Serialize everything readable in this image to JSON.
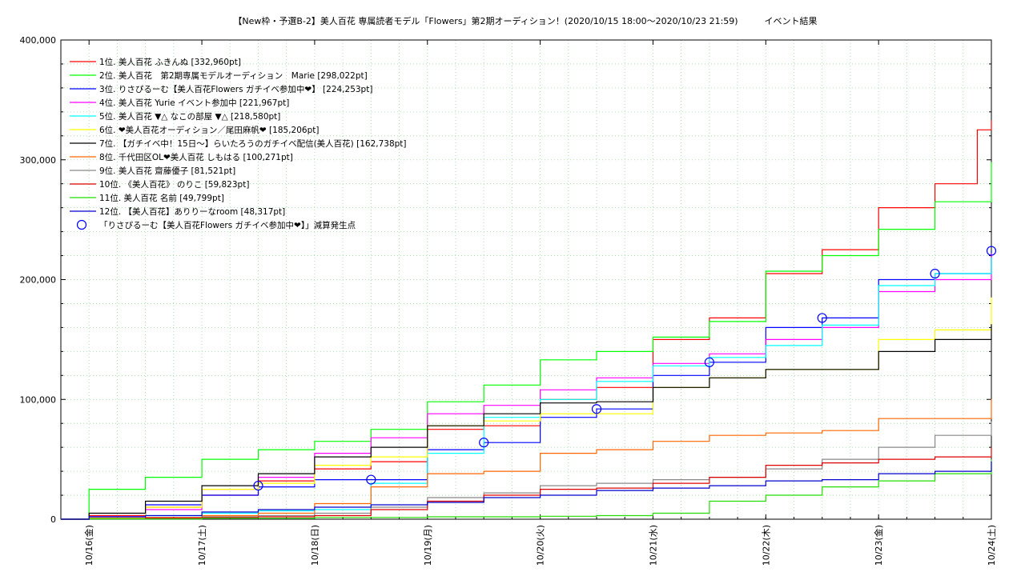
{
  "chart_data": {
    "type": "line",
    "title": "【New枠・予選B-2】美人百花 専属読者モデル「Flowers」第2期オーディション！(2020/10/15 18:00〜2020/10/23 21:59)　　　イベント結果",
    "xlabel": "",
    "ylabel": "",
    "x_range": [
      "2020-10-15 18:00",
      "2020-10-24 00:00"
    ],
    "ylim": [
      0,
      400000
    ],
    "y_ticks": [
      {
        "value": 0,
        "label": "0"
      },
      {
        "value": 100000,
        "label": "100,000"
      },
      {
        "value": 200000,
        "label": "200,000"
      },
      {
        "value": 300000,
        "label": "300,000"
      },
      {
        "value": 400000,
        "label": "400,000"
      }
    ],
    "x_ticks": [
      {
        "date": "2020-10-16",
        "label": "10/16(金)"
      },
      {
        "date": "2020-10-17",
        "label": "10/17(土)"
      },
      {
        "date": "2020-10-18",
        "label": "10/18(日)"
      },
      {
        "date": "2020-10-19",
        "label": "10/19(月)"
      },
      {
        "date": "2020-10-20",
        "label": "10/20(火)"
      },
      {
        "date": "2020-10-21",
        "label": "10/21(水)"
      },
      {
        "date": "2020-10-22",
        "label": "10/22(木)"
      },
      {
        "date": "2020-10-23",
        "label": "10/23(金)"
      },
      {
        "date": "2020-10-24",
        "label": "10/24(土)"
      }
    ],
    "grid": true,
    "legend_position": "top-left",
    "series": [
      {
        "name": "1位. 美人百花 ふきんぬ [332,960pt]",
        "color": "#ff0000",
        "points": [
          [
            "2020-10-15 18:00",
            0
          ],
          [
            "2020-10-16 00:00",
            3000
          ],
          [
            "2020-10-16 12:00",
            10000
          ],
          [
            "2020-10-17 00:00",
            20000
          ],
          [
            "2020-10-17 12:00",
            32000
          ],
          [
            "2020-10-18 00:00",
            42000
          ],
          [
            "2020-10-18 12:00",
            48000
          ],
          [
            "2020-10-19 00:00",
            75000
          ],
          [
            "2020-10-19 12:00",
            78000
          ],
          [
            "2020-10-20 00:00",
            100000
          ],
          [
            "2020-10-20 12:00",
            110000
          ],
          [
            "2020-10-21 00:00",
            150000
          ],
          [
            "2020-10-21 12:00",
            168000
          ],
          [
            "2020-10-22 00:00",
            205000
          ],
          [
            "2020-10-22 12:00",
            225000
          ],
          [
            "2020-10-23 00:00",
            260000
          ],
          [
            "2020-10-23 12:00",
            280000
          ],
          [
            "2020-10-23 21:00",
            325000
          ],
          [
            "2020-10-24 00:00",
            332960
          ]
        ]
      },
      {
        "name": "2位. 美人百花　第2期専属モデルオーディション　Marie [298,022pt]",
        "color": "#00ff00",
        "points": [
          [
            "2020-10-15 18:00",
            0
          ],
          [
            "2020-10-16 00:00",
            25000
          ],
          [
            "2020-10-16 12:00",
            35000
          ],
          [
            "2020-10-17 00:00",
            50000
          ],
          [
            "2020-10-17 12:00",
            58000
          ],
          [
            "2020-10-18 00:00",
            65000
          ],
          [
            "2020-10-18 12:00",
            75000
          ],
          [
            "2020-10-19 00:00",
            98000
          ],
          [
            "2020-10-19 12:00",
            112000
          ],
          [
            "2020-10-20 00:00",
            133000
          ],
          [
            "2020-10-20 12:00",
            140000
          ],
          [
            "2020-10-21 00:00",
            152000
          ],
          [
            "2020-10-21 12:00",
            165000
          ],
          [
            "2020-10-22 00:00",
            207000
          ],
          [
            "2020-10-22 12:00",
            220000
          ],
          [
            "2020-10-23 00:00",
            242000
          ],
          [
            "2020-10-23 12:00",
            265000
          ],
          [
            "2020-10-24 00:00",
            298022
          ]
        ]
      },
      {
        "name": "3位. りさぴるーむ【美人百花Flowers ガチイベ参加中❤】 [224,253pt]",
        "color": "#0000ff",
        "points": [
          [
            "2020-10-15 18:00",
            0
          ],
          [
            "2020-10-16 00:00",
            2000
          ],
          [
            "2020-10-16 12:00",
            12000
          ],
          [
            "2020-10-17 00:00",
            20000
          ],
          [
            "2020-10-17 12:00",
            27000
          ],
          [
            "2020-10-18 00:00",
            33000
          ],
          [
            "2020-10-18 12:00",
            33000
          ],
          [
            "2020-10-19 00:00",
            58000
          ],
          [
            "2020-10-19 12:00",
            64000
          ],
          [
            "2020-10-20 00:00",
            85000
          ],
          [
            "2020-10-20 12:00",
            92000
          ],
          [
            "2020-10-21 00:00",
            120000
          ],
          [
            "2020-10-21 12:00",
            131000
          ],
          [
            "2020-10-22 00:00",
            160000
          ],
          [
            "2020-10-22 12:00",
            168000
          ],
          [
            "2020-10-23 00:00",
            200000
          ],
          [
            "2020-10-23 12:00",
            205000
          ],
          [
            "2020-10-24 00:00",
            224253
          ]
        ]
      },
      {
        "name": "4位. 美人百花 Yurie イベント参加中 [221,967pt]",
        "color": "#ff00ff",
        "points": [
          [
            "2020-10-15 18:00",
            0
          ],
          [
            "2020-10-16 00:00",
            2000
          ],
          [
            "2020-10-16 12:00",
            8000
          ],
          [
            "2020-10-17 00:00",
            25000
          ],
          [
            "2020-10-17 12:00",
            35000
          ],
          [
            "2020-10-18 00:00",
            55000
          ],
          [
            "2020-10-18 12:00",
            68000
          ],
          [
            "2020-10-19 00:00",
            88000
          ],
          [
            "2020-10-19 12:00",
            95000
          ],
          [
            "2020-10-20 00:00",
            108000
          ],
          [
            "2020-10-20 12:00",
            118000
          ],
          [
            "2020-10-21 00:00",
            130000
          ],
          [
            "2020-10-21 12:00",
            138000
          ],
          [
            "2020-10-22 00:00",
            150000
          ],
          [
            "2020-10-22 12:00",
            160000
          ],
          [
            "2020-10-23 00:00",
            190000
          ],
          [
            "2020-10-23 12:00",
            200000
          ],
          [
            "2020-10-24 00:00",
            221967
          ]
        ]
      },
      {
        "name": "5位. 美人百花 ▼△ なこの部屋 ▼△ [218,580pt]",
        "color": "#00ffff",
        "points": [
          [
            "2020-10-15 18:00",
            0
          ],
          [
            "2020-10-16 00:00",
            1000
          ],
          [
            "2020-10-16 12:00",
            3000
          ],
          [
            "2020-10-17 00:00",
            5000
          ],
          [
            "2020-10-17 12:00",
            7000
          ],
          [
            "2020-10-18 00:00",
            8000
          ],
          [
            "2020-10-18 12:00",
            30000
          ],
          [
            "2020-10-19 00:00",
            55000
          ],
          [
            "2020-10-19 12:00",
            85000
          ],
          [
            "2020-10-20 00:00",
            100000
          ],
          [
            "2020-10-20 12:00",
            115000
          ],
          [
            "2020-10-21 00:00",
            128000
          ],
          [
            "2020-10-21 12:00",
            135000
          ],
          [
            "2020-10-22 00:00",
            145000
          ],
          [
            "2020-10-22 12:00",
            162000
          ],
          [
            "2020-10-23 00:00",
            195000
          ],
          [
            "2020-10-23 12:00",
            205000
          ],
          [
            "2020-10-24 00:00",
            218580
          ]
        ]
      },
      {
        "name": "6位. ❤美人百花オーディション／尾田麻帆❤ [185,206pt]",
        "color": "#ffff00",
        "points": [
          [
            "2020-10-15 18:00",
            0
          ],
          [
            "2020-10-16 00:00",
            1000
          ],
          [
            "2020-10-16 12:00",
            10000
          ],
          [
            "2020-10-17 00:00",
            25000
          ],
          [
            "2020-10-17 12:00",
            30000
          ],
          [
            "2020-10-18 00:00",
            45000
          ],
          [
            "2020-10-18 12:00",
            52000
          ],
          [
            "2020-10-19 00:00",
            78000
          ],
          [
            "2020-10-19 12:00",
            82000
          ],
          [
            "2020-10-20 00:00",
            88000
          ],
          [
            "2020-10-20 12:00",
            88000
          ],
          [
            "2020-10-21 00:00",
            110000
          ],
          [
            "2020-10-21 12:00",
            118000
          ],
          [
            "2020-10-22 00:00",
            125000
          ],
          [
            "2020-10-22 12:00",
            125000
          ],
          [
            "2020-10-23 00:00",
            150000
          ],
          [
            "2020-10-23 12:00",
            158000
          ],
          [
            "2020-10-24 00:00",
            185206
          ]
        ]
      },
      {
        "name": "7位. 【ガチイベ中！15日〜】らいたろうのガチイベ配信(美人百花) [162,738pt]",
        "color": "#000000",
        "points": [
          [
            "2020-10-15 18:00",
            0
          ],
          [
            "2020-10-16 00:00",
            5000
          ],
          [
            "2020-10-16 12:00",
            15000
          ],
          [
            "2020-10-17 00:00",
            28000
          ],
          [
            "2020-10-17 12:00",
            38000
          ],
          [
            "2020-10-18 00:00",
            52000
          ],
          [
            "2020-10-18 12:00",
            60000
          ],
          [
            "2020-10-19 00:00",
            78000
          ],
          [
            "2020-10-19 12:00",
            88000
          ],
          [
            "2020-10-20 00:00",
            97000
          ],
          [
            "2020-10-20 12:00",
            98000
          ],
          [
            "2020-10-21 00:00",
            110000
          ],
          [
            "2020-10-21 12:00",
            118000
          ],
          [
            "2020-10-22 00:00",
            125000
          ],
          [
            "2020-10-22 12:00",
            125000
          ],
          [
            "2020-10-23 00:00",
            140000
          ],
          [
            "2020-10-23 12:00",
            150000
          ],
          [
            "2020-10-24 00:00",
            162738
          ]
        ]
      },
      {
        "name": "8位. 千代田区OL❤美人百花 しもはる [100,271pt]",
        "color": "#ff6600",
        "points": [
          [
            "2020-10-15 18:00",
            0
          ],
          [
            "2020-10-16 00:00",
            500
          ],
          [
            "2020-10-16 12:00",
            1500
          ],
          [
            "2020-10-17 00:00",
            3000
          ],
          [
            "2020-10-17 12:00",
            5000
          ],
          [
            "2020-10-18 00:00",
            13000
          ],
          [
            "2020-10-18 12:00",
            27000
          ],
          [
            "2020-10-19 00:00",
            38000
          ],
          [
            "2020-10-19 12:00",
            40000
          ],
          [
            "2020-10-20 00:00",
            55000
          ],
          [
            "2020-10-20 12:00",
            58000
          ],
          [
            "2020-10-21 00:00",
            65000
          ],
          [
            "2020-10-21 12:00",
            70000
          ],
          [
            "2020-10-22 00:00",
            72000
          ],
          [
            "2020-10-22 12:00",
            74000
          ],
          [
            "2020-10-23 00:00",
            84000
          ],
          [
            "2020-10-23 12:00",
            84000
          ],
          [
            "2020-10-24 00:00",
            100271
          ]
        ]
      },
      {
        "name": "9位. 美人百花 齋藤優子 [81,521pt]",
        "color": "#888888",
        "points": [
          [
            "2020-10-15 18:00",
            0
          ],
          [
            "2020-10-16 00:00",
            500
          ],
          [
            "2020-10-16 12:00",
            1000
          ],
          [
            "2020-10-17 00:00",
            2000
          ],
          [
            "2020-10-17 12:00",
            3000
          ],
          [
            "2020-10-18 00:00",
            5000
          ],
          [
            "2020-10-18 12:00",
            10000
          ],
          [
            "2020-10-19 00:00",
            18000
          ],
          [
            "2020-10-19 12:00",
            22000
          ],
          [
            "2020-10-20 00:00",
            28000
          ],
          [
            "2020-10-20 12:00",
            30000
          ],
          [
            "2020-10-21 00:00",
            33000
          ],
          [
            "2020-10-21 12:00",
            35000
          ],
          [
            "2020-10-22 00:00",
            42000
          ],
          [
            "2020-10-22 12:00",
            50000
          ],
          [
            "2020-10-23 00:00",
            60000
          ],
          [
            "2020-10-23 12:00",
            70000
          ],
          [
            "2020-10-24 00:00",
            81521
          ]
        ]
      },
      {
        "name": "10位. 《美人百花》 のりこ [59,823pt]",
        "color": "#dd0000",
        "points": [
          [
            "2020-10-15 18:00",
            0
          ],
          [
            "2020-10-16 00:00",
            500
          ],
          [
            "2020-10-16 12:00",
            1000
          ],
          [
            "2020-10-17 00:00",
            1500
          ],
          [
            "2020-10-17 12:00",
            2000
          ],
          [
            "2020-10-18 00:00",
            3000
          ],
          [
            "2020-10-18 12:00",
            8000
          ],
          [
            "2020-10-19 00:00",
            15000
          ],
          [
            "2020-10-19 12:00",
            20000
          ],
          [
            "2020-10-20 00:00",
            25000
          ],
          [
            "2020-10-20 12:00",
            26000
          ],
          [
            "2020-10-21 00:00",
            30000
          ],
          [
            "2020-10-21 12:00",
            35000
          ],
          [
            "2020-10-22 00:00",
            45000
          ],
          [
            "2020-10-22 12:00",
            47000
          ],
          [
            "2020-10-23 00:00",
            50000
          ],
          [
            "2020-10-23 12:00",
            52000
          ],
          [
            "2020-10-24 00:00",
            59823
          ]
        ]
      },
      {
        "name": "11位. 美人百花 名前 [49,799pt]",
        "color": "#22dd00",
        "points": [
          [
            "2020-10-15 18:00",
            0
          ],
          [
            "2020-10-16 00:00",
            300
          ],
          [
            "2020-10-17 00:00",
            800
          ],
          [
            "2020-10-18 00:00",
            1500
          ],
          [
            "2020-10-19 00:00",
            2000
          ],
          [
            "2020-10-20 00:00",
            2500
          ],
          [
            "2020-10-20 12:00",
            3000
          ],
          [
            "2020-10-21 00:00",
            5000
          ],
          [
            "2020-10-21 12:00",
            15000
          ],
          [
            "2020-10-22 00:00",
            20000
          ],
          [
            "2020-10-22 12:00",
            27000
          ],
          [
            "2020-10-23 00:00",
            32000
          ],
          [
            "2020-10-23 12:00",
            38000
          ],
          [
            "2020-10-24 00:00",
            49799
          ]
        ]
      },
      {
        "name": "12位. 【美人百花】ありりーなroom [48,317pt]",
        "color": "#0000cc",
        "points": [
          [
            "2020-10-15 18:00",
            0
          ],
          [
            "2020-10-16 00:00",
            2000
          ],
          [
            "2020-10-16 12:00",
            3000
          ],
          [
            "2020-10-17 00:00",
            6000
          ],
          [
            "2020-10-17 12:00",
            8000
          ],
          [
            "2020-10-18 00:00",
            10000
          ],
          [
            "2020-10-18 12:00",
            12000
          ],
          [
            "2020-10-19 00:00",
            14000
          ],
          [
            "2020-10-19 12:00",
            18000
          ],
          [
            "2020-10-20 00:00",
            20000
          ],
          [
            "2020-10-20 12:00",
            24000
          ],
          [
            "2020-10-21 00:00",
            26000
          ],
          [
            "2020-10-21 12:00",
            28000
          ],
          [
            "2020-10-22 00:00",
            32000
          ],
          [
            "2020-10-22 12:00",
            33000
          ],
          [
            "2020-10-23 00:00",
            38000
          ],
          [
            "2020-10-23 12:00",
            40000
          ],
          [
            "2020-10-24 00:00",
            48317
          ]
        ]
      }
    ],
    "markers": {
      "name": "「りさぴるーむ【美人百花Flowers ガチイベ参加中❤】」減算発生点",
      "color": "#0000ff",
      "points": [
        [
          "2020-10-17 12:00",
          28000
        ],
        [
          "2020-10-18 12:00",
          33000
        ],
        [
          "2020-10-19 12:00",
          64000
        ],
        [
          "2020-10-20 12:00",
          92000
        ],
        [
          "2020-10-21 12:00",
          131000
        ],
        [
          "2020-10-22 12:00",
          168000
        ],
        [
          "2020-10-23 12:00",
          205000
        ],
        [
          "2020-10-24 00:00",
          224000
        ]
      ]
    }
  }
}
